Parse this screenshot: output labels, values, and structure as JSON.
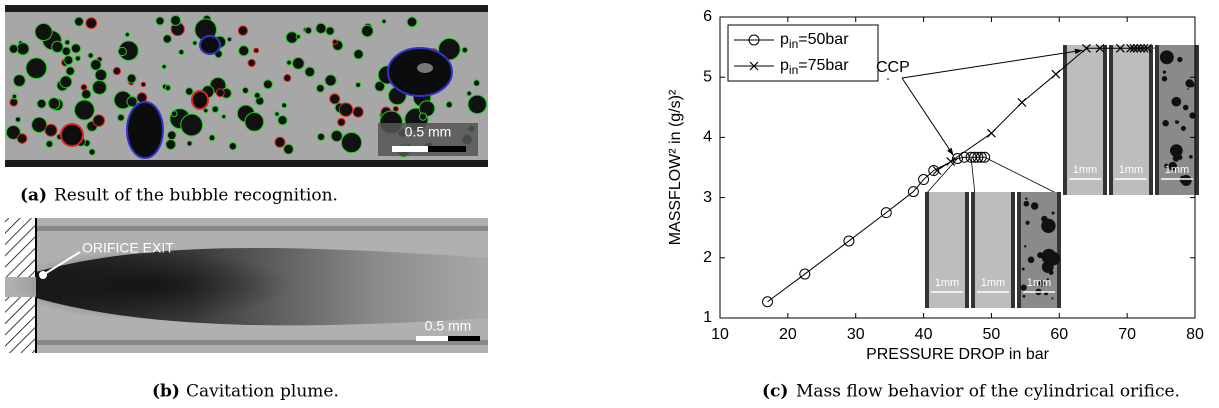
{
  "panels": {
    "a": {
      "scale_bar": "0.5 mm",
      "caption_label": "(a)",
      "caption": "Result of the bubble recognition."
    },
    "b": {
      "annotation": "ORIFICE EXIT",
      "scale_bar": "0.5 mm",
      "caption_label": "(b)",
      "caption": "Cavitation plume."
    },
    "c": {
      "caption_label": "(c)",
      "caption": "Mass flow behavior of the cylindrical orifice.",
      "insets": [
        {
          "labels": [
            "1mm",
            "1mm",
            "1mm"
          ]
        },
        {
          "labels": [
            "1mm",
            "1mm",
            "1mm"
          ]
        }
      ]
    }
  },
  "chart_data": {
    "type": "line",
    "xlabel": "PRESSURE DROP in bar",
    "ylabel": "MASSFLOW² in (g/s)²",
    "xlim": [
      10,
      80
    ],
    "ylim": [
      1,
      6
    ],
    "xticks": [
      10,
      20,
      30,
      40,
      50,
      60,
      70,
      80
    ],
    "yticks": [
      1,
      2,
      3,
      4,
      5,
      6
    ],
    "legend": "upper left",
    "annotation": "CCP",
    "series": [
      {
        "name": "p_in=50bar",
        "color": "#000000",
        "marker": "o",
        "x": [
          17,
          22.5,
          29,
          34.5,
          38.5,
          40,
          41.5,
          45,
          46,
          47,
          47.5,
          48,
          48.5,
          49
        ],
        "values": [
          1.27,
          1.73,
          2.28,
          2.75,
          3.1,
          3.3,
          3.45,
          3.65,
          3.67,
          3.67,
          3.67,
          3.67,
          3.67,
          3.67
        ]
      },
      {
        "name": "p_in=75bar",
        "color": "#000000",
        "marker": "x",
        "x": [
          42,
          44,
          50,
          54.5,
          59.5,
          64,
          66,
          69,
          70.5,
          71,
          71.5,
          72,
          72.5,
          73
        ],
        "values": [
          3.45,
          3.6,
          4.07,
          4.58,
          5.05,
          5.48,
          5.48,
          5.48,
          5.48,
          5.48,
          5.48,
          5.48,
          5.48,
          5.48
        ]
      }
    ]
  }
}
